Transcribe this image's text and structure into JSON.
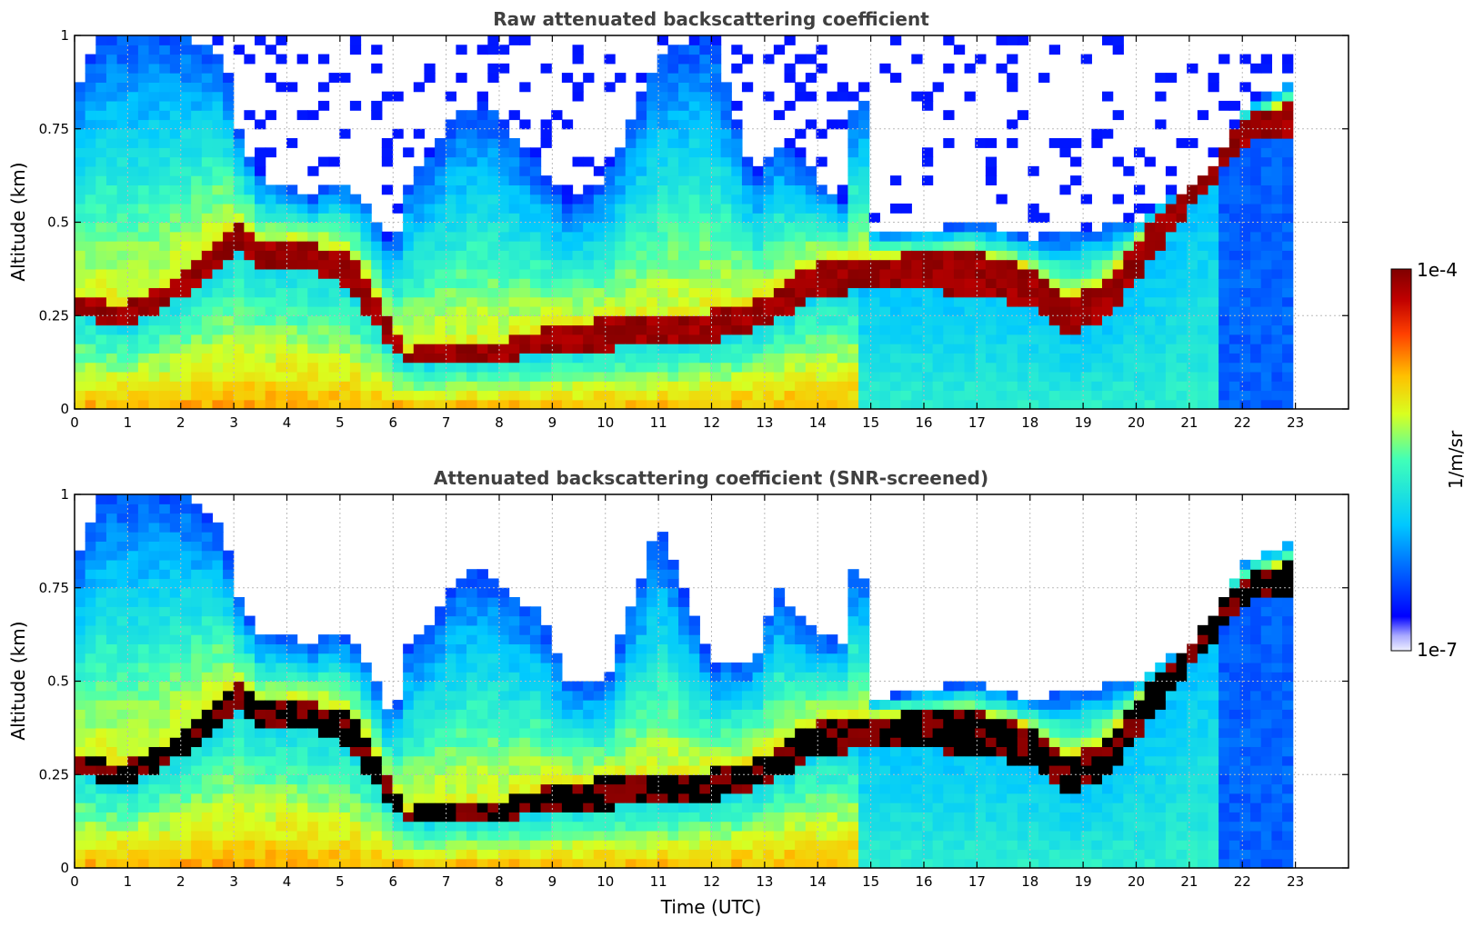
{
  "figure": {
    "xlabel": "Time (UTC)",
    "colorbar": {
      "label": "1/m/sr",
      "max_label": "1e-4",
      "min_label": "1e-7",
      "colormap": "jet",
      "vmin": 1e-07,
      "vmax": 0.0001,
      "scale": "log"
    }
  },
  "chart_data": [
    {
      "type": "heatmap",
      "title": "Raw attenuated backscattering coefficient",
      "xlabel": "",
      "ylabel": "Altitude (km)",
      "xlim": [
        0,
        24
      ],
      "ylim": [
        0,
        1
      ],
      "x_ticks": [
        "0",
        "1",
        "2",
        "3",
        "4",
        "5",
        "6",
        "7",
        "8",
        "9",
        "10",
        "11",
        "12",
        "13",
        "14",
        "15",
        "16",
        "17",
        "18",
        "19",
        "20",
        "21",
        "22",
        "23"
      ],
      "y_ticks": [
        "0",
        "0.25",
        "0.5",
        "0.75",
        "1"
      ],
      "grid": true,
      "data_end_hour": 22.95,
      "layer_top_km": [
        [
          0,
          0.85
        ],
        [
          0.5,
          1.0
        ],
        [
          1,
          1.0
        ],
        [
          2,
          1.0
        ],
        [
          2.8,
          0.95
        ],
        [
          3.1,
          0.75
        ],
        [
          3.5,
          0.62
        ],
        [
          4,
          0.6
        ],
        [
          4.5,
          0.57
        ],
        [
          5,
          0.62
        ],
        [
          5.5,
          0.55
        ],
        [
          6,
          0.43
        ],
        [
          6.3,
          0.62
        ],
        [
          6.8,
          0.7
        ],
        [
          7.2,
          0.8
        ],
        [
          7.8,
          0.82
        ],
        [
          8.3,
          0.72
        ],
        [
          8.7,
          0.66
        ],
        [
          9.3,
          0.55
        ],
        [
          10,
          0.62
        ],
        [
          11,
          0.95
        ],
        [
          12,
          1.0
        ],
        [
          12.8,
          0.6
        ],
        [
          13.2,
          0.72
        ],
        [
          13.8,
          0.65
        ],
        [
          14.5,
          0.55
        ],
        [
          14.8,
          1.0
        ],
        [
          15,
          0.48
        ],
        [
          16,
          0.48
        ],
        [
          17,
          0.5
        ],
        [
          18,
          0.46
        ],
        [
          19,
          0.48
        ],
        [
          20,
          0.5
        ],
        [
          21,
          0.6
        ],
        [
          21.5,
          0.65
        ],
        [
          22,
          0.8
        ],
        [
          22.95,
          0.88
        ]
      ],
      "cloud_base_km": [
        [
          0,
          0.25
        ],
        [
          1,
          0.22
        ],
        [
          2,
          0.3
        ],
        [
          3,
          0.42
        ],
        [
          3.5,
          0.38
        ],
        [
          4,
          0.38
        ],
        [
          5,
          0.35
        ],
        [
          5.3,
          0.3
        ],
        [
          6.2,
          0.12
        ],
        [
          7,
          0.12
        ],
        [
          8,
          0.13
        ],
        [
          9,
          0.15
        ],
        [
          10,
          0.16
        ],
        [
          11,
          0.17
        ],
        [
          12,
          0.18
        ],
        [
          13,
          0.22
        ],
        [
          14,
          0.3
        ],
        [
          14.8,
          0.32
        ],
        [
          16,
          0.32
        ],
        [
          17,
          0.3
        ],
        [
          18,
          0.28
        ],
        [
          18.7,
          0.2
        ],
        [
          19.5,
          0.25
        ],
        [
          20,
          0.35
        ],
        [
          20.8,
          0.5
        ],
        [
          21.5,
          0.62
        ],
        [
          22.3,
          0.72
        ],
        [
          22.95,
          0.74
        ]
      ],
      "cloud_top_km": [
        [
          0,
          0.3
        ],
        [
          1,
          0.28
        ],
        [
          2,
          0.36
        ],
        [
          3,
          0.5
        ],
        [
          3.5,
          0.45
        ],
        [
          4,
          0.45
        ],
        [
          5,
          0.43
        ],
        [
          5.3,
          0.4
        ],
        [
          6.2,
          0.16
        ],
        [
          7,
          0.17
        ],
        [
          8,
          0.18
        ],
        [
          9,
          0.22
        ],
        [
          10,
          0.24
        ],
        [
          11,
          0.25
        ],
        [
          12,
          0.26
        ],
        [
          13,
          0.3
        ],
        [
          14,
          0.4
        ],
        [
          14.8,
          0.4
        ],
        [
          16,
          0.42
        ],
        [
          17,
          0.42
        ],
        [
          18,
          0.38
        ],
        [
          18.7,
          0.3
        ],
        [
          19.5,
          0.35
        ],
        [
          20,
          0.45
        ],
        [
          20.8,
          0.58
        ],
        [
          21.5,
          0.7
        ],
        [
          22.3,
          0.8
        ],
        [
          22.95,
          0.82
        ]
      ]
    },
    {
      "type": "heatmap",
      "title": "Attenuated backscattering coefficient (SNR-screened)",
      "xlabel": "Time (UTC)",
      "ylabel": "Altitude (km)",
      "xlim": [
        0,
        24
      ],
      "ylim": [
        0,
        1
      ],
      "x_ticks": [
        "0",
        "1",
        "2",
        "3",
        "4",
        "5",
        "6",
        "7",
        "8",
        "9",
        "10",
        "11",
        "12",
        "13",
        "14",
        "15",
        "16",
        "17",
        "18",
        "19",
        "20",
        "21",
        "22",
        "23"
      ],
      "y_ticks": [
        "0",
        "0.25",
        "0.5",
        "0.75",
        "1"
      ],
      "grid": true,
      "saturated_color": "#000000",
      "data_end_hour": 22.95,
      "layer_top_km": [
        [
          0,
          0.8
        ],
        [
          0.5,
          1.0
        ],
        [
          1,
          1.0
        ],
        [
          2,
          1.0
        ],
        [
          2.8,
          0.9
        ],
        [
          3.1,
          0.72
        ],
        [
          3.5,
          0.62
        ],
        [
          4,
          0.62
        ],
        [
          4.5,
          0.6
        ],
        [
          5,
          0.64
        ],
        [
          5.5,
          0.55
        ],
        [
          6,
          0.4
        ],
        [
          6.3,
          0.6
        ],
        [
          6.8,
          0.68
        ],
        [
          7.2,
          0.78
        ],
        [
          7.8,
          0.8
        ],
        [
          8.3,
          0.72
        ],
        [
          8.7,
          0.7
        ],
        [
          9.3,
          0.5
        ],
        [
          10,
          0.5
        ],
        [
          11,
          0.92
        ],
        [
          12,
          0.55
        ],
        [
          12.8,
          0.55
        ],
        [
          13.2,
          0.75
        ],
        [
          13.8,
          0.65
        ],
        [
          14.5,
          0.6
        ],
        [
          14.8,
          0.95
        ],
        [
          15,
          0.45
        ],
        [
          16,
          0.48
        ],
        [
          17,
          0.5
        ],
        [
          18,
          0.45
        ],
        [
          19,
          0.48
        ],
        [
          20,
          0.5
        ],
        [
          21,
          0.6
        ],
        [
          21.5,
          0.68
        ],
        [
          22,
          0.82
        ],
        [
          22.95,
          0.88
        ]
      ],
      "cloud_base_km": [
        [
          0,
          0.25
        ],
        [
          1,
          0.22
        ],
        [
          2,
          0.3
        ],
        [
          3,
          0.42
        ],
        [
          3.5,
          0.38
        ],
        [
          4,
          0.38
        ],
        [
          5,
          0.35
        ],
        [
          5.3,
          0.3
        ],
        [
          6.2,
          0.12
        ],
        [
          7,
          0.12
        ],
        [
          8,
          0.13
        ],
        [
          9,
          0.15
        ],
        [
          10,
          0.16
        ],
        [
          11,
          0.17
        ],
        [
          12,
          0.18
        ],
        [
          13,
          0.22
        ],
        [
          14,
          0.3
        ],
        [
          14.8,
          0.32
        ],
        [
          16,
          0.32
        ],
        [
          17,
          0.3
        ],
        [
          18,
          0.28
        ],
        [
          18.7,
          0.2
        ],
        [
          19.5,
          0.25
        ],
        [
          20,
          0.35
        ],
        [
          20.8,
          0.5
        ],
        [
          21.5,
          0.62
        ],
        [
          22.3,
          0.72
        ],
        [
          22.95,
          0.74
        ]
      ],
      "cloud_top_km": [
        [
          0,
          0.3
        ],
        [
          1,
          0.28
        ],
        [
          2,
          0.36
        ],
        [
          3,
          0.5
        ],
        [
          3.5,
          0.45
        ],
        [
          4,
          0.45
        ],
        [
          5,
          0.43
        ],
        [
          5.3,
          0.4
        ],
        [
          6.2,
          0.16
        ],
        [
          7,
          0.17
        ],
        [
          8,
          0.18
        ],
        [
          9,
          0.22
        ],
        [
          10,
          0.24
        ],
        [
          11,
          0.25
        ],
        [
          12,
          0.26
        ],
        [
          13,
          0.3
        ],
        [
          14,
          0.4
        ],
        [
          14.8,
          0.4
        ],
        [
          16,
          0.42
        ],
        [
          17,
          0.42
        ],
        [
          18,
          0.38
        ],
        [
          18.7,
          0.3
        ],
        [
          19.5,
          0.35
        ],
        [
          20,
          0.45
        ],
        [
          20.8,
          0.58
        ],
        [
          21.5,
          0.7
        ],
        [
          22.3,
          0.8
        ],
        [
          22.95,
          0.82
        ]
      ]
    }
  ]
}
